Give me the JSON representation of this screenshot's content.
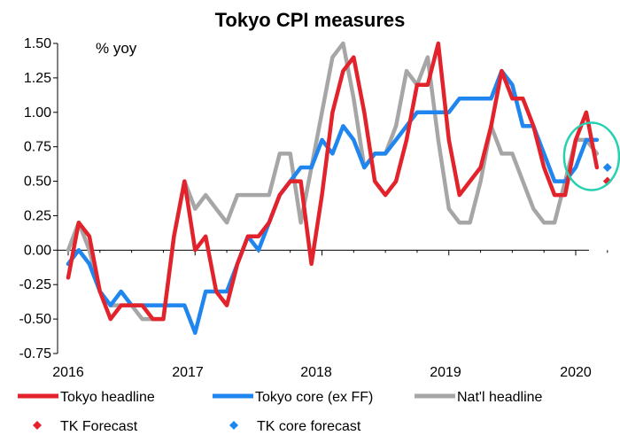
{
  "chart_data": {
    "type": "line",
    "title": "Tokyo CPI measures",
    "ylabel": "% yoy",
    "xlabel": "",
    "ylim": [
      -0.75,
      1.5
    ],
    "yticks": [
      "1.50",
      "1.25",
      "1.00",
      "0.75",
      "0.50",
      "0.25",
      "0.00",
      "-0.25",
      "-0.50",
      "-0.75"
    ],
    "ytick_values": [
      1.5,
      1.25,
      1.0,
      0.75,
      0.5,
      0.25,
      0.0,
      -0.25,
      -0.5,
      -0.75
    ],
    "xticks": [
      "2016",
      "2017",
      "2018",
      "2019",
      "2020"
    ],
    "x_start": "2016-01",
    "grid": false,
    "legend_position": "bottom",
    "series": [
      {
        "name": "Tokyo headline",
        "color": "#e3232c",
        "values": [
          -0.2,
          0.2,
          0.1,
          -0.3,
          -0.5,
          -0.4,
          -0.4,
          -0.4,
          -0.5,
          -0.5,
          0.1,
          0.5,
          0.0,
          0.1,
          -0.3,
          -0.4,
          -0.1,
          0.1,
          0.1,
          0.2,
          0.4,
          0.5,
          0.5,
          -0.1,
          0.4,
          1.0,
          1.3,
          1.4,
          1.0,
          0.5,
          0.4,
          0.5,
          0.8,
          1.2,
          1.2,
          1.5,
          0.8,
          0.4,
          0.5,
          0.6,
          0.9,
          1.3,
          1.1,
          1.1,
          0.9,
          0.6,
          0.4,
          0.4,
          0.8,
          1.0,
          0.6
        ]
      },
      {
        "name": "Tokyo core (ex FF)",
        "color": "#1f86ef",
        "values": [
          -0.1,
          0.0,
          -0.1,
          -0.3,
          -0.4,
          -0.3,
          -0.4,
          -0.4,
          -0.4,
          -0.4,
          -0.4,
          -0.4,
          -0.6,
          -0.3,
          -0.3,
          -0.3,
          -0.1,
          0.1,
          0.0,
          0.2,
          0.4,
          0.5,
          0.6,
          0.6,
          0.8,
          0.7,
          0.9,
          0.8,
          0.6,
          0.7,
          0.7,
          0.8,
          0.9,
          1.0,
          1.0,
          1.0,
          1.0,
          1.1,
          1.1,
          1.1,
          1.1,
          1.3,
          1.2,
          0.9,
          0.9,
          0.7,
          0.5,
          0.5,
          0.6,
          0.8,
          0.8
        ]
      },
      {
        "name": "Nat'l headline",
        "color": "#a6a6a6",
        "values": [
          0.0,
          0.2,
          0.0,
          -0.3,
          -0.4,
          -0.4,
          -0.4,
          -0.5,
          -0.5,
          -0.5,
          0.1,
          0.5,
          0.3,
          0.4,
          0.3,
          0.2,
          0.4,
          0.4,
          0.4,
          0.4,
          0.7,
          0.7,
          0.2,
          0.6,
          1.0,
          1.4,
          1.5,
          1.1,
          0.6,
          0.7,
          0.7,
          0.9,
          1.3,
          1.2,
          1.4,
          0.8,
          0.3,
          0.2,
          0.2,
          0.5,
          0.9,
          0.7,
          0.7,
          0.5,
          0.3,
          0.2,
          0.2,
          0.5,
          0.8,
          0.8,
          0.7
        ]
      }
    ],
    "forecasts": [
      {
        "name": "TK Forecast",
        "color": "#e3232c",
        "x_month_index": 51,
        "value": 0.5
      },
      {
        "name": "TK core forecast",
        "color": "#1f86ef",
        "x_month_index": 51,
        "value": 0.6
      }
    ],
    "annotation": {
      "type": "ellipse",
      "color": "#26d0b0",
      "note": ""
    }
  }
}
